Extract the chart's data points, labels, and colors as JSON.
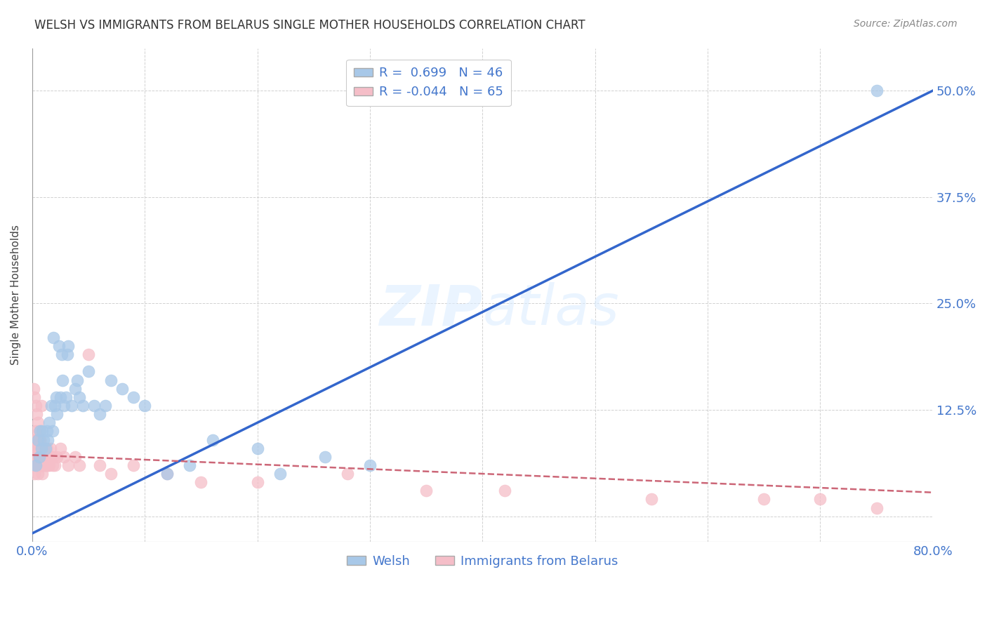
{
  "title": "WELSH VS IMMIGRANTS FROM BELARUS SINGLE MOTHER HOUSEHOLDS CORRELATION CHART",
  "source": "Source: ZipAtlas.com",
  "ylabel": "Single Mother Households",
  "xlabel_welsh": "Welsh",
  "xlabel_immigrants": "Immigrants from Belarus",
  "xmin": 0.0,
  "xmax": 0.8,
  "ymin": -0.03,
  "ymax": 0.55,
  "welsh_R": 0.699,
  "welsh_N": 46,
  "immigrants_R": -0.044,
  "immigrants_N": 65,
  "welsh_color": "#a8c8e8",
  "immigrants_color": "#f5bec8",
  "welsh_line_color": "#3366cc",
  "immigrants_line_color": "#cc6677",
  "watermark": "ZIPatlas",
  "welsh_line_x0": 0.0,
  "welsh_line_y0": -0.02,
  "welsh_line_x1": 0.8,
  "welsh_line_y1": 0.5,
  "immigrants_line_x0": 0.0,
  "immigrants_line_y0": 0.072,
  "immigrants_line_x1": 0.8,
  "immigrants_line_y1": 0.028,
  "welsh_scatter_x": [
    0.003,
    0.005,
    0.006,
    0.007,
    0.008,
    0.009,
    0.01,
    0.012,
    0.013,
    0.014,
    0.015,
    0.017,
    0.018,
    0.019,
    0.02,
    0.021,
    0.022,
    0.024,
    0.025,
    0.026,
    0.027,
    0.028,
    0.03,
    0.031,
    0.032,
    0.035,
    0.038,
    0.04,
    0.042,
    0.045,
    0.05,
    0.055,
    0.06,
    0.065,
    0.07,
    0.08,
    0.09,
    0.1,
    0.12,
    0.14,
    0.16,
    0.2,
    0.22,
    0.26,
    0.3,
    0.75
  ],
  "welsh_scatter_y": [
    0.06,
    0.09,
    0.07,
    0.1,
    0.08,
    0.1,
    0.09,
    0.08,
    0.1,
    0.09,
    0.11,
    0.13,
    0.1,
    0.21,
    0.13,
    0.14,
    0.12,
    0.2,
    0.14,
    0.19,
    0.16,
    0.13,
    0.14,
    0.19,
    0.2,
    0.13,
    0.15,
    0.16,
    0.14,
    0.13,
    0.17,
    0.13,
    0.12,
    0.13,
    0.16,
    0.15,
    0.14,
    0.13,
    0.05,
    0.06,
    0.09,
    0.08,
    0.05,
    0.07,
    0.06,
    0.5
  ],
  "immigrants_scatter_x": [
    0.001,
    0.001,
    0.001,
    0.002,
    0.002,
    0.002,
    0.003,
    0.003,
    0.003,
    0.004,
    0.004,
    0.004,
    0.005,
    0.005,
    0.005,
    0.006,
    0.006,
    0.006,
    0.007,
    0.007,
    0.007,
    0.008,
    0.008,
    0.008,
    0.009,
    0.009,
    0.009,
    0.01,
    0.01,
    0.01,
    0.011,
    0.011,
    0.012,
    0.012,
    0.013,
    0.013,
    0.014,
    0.014,
    0.015,
    0.015,
    0.016,
    0.017,
    0.018,
    0.019,
    0.02,
    0.022,
    0.025,
    0.028,
    0.032,
    0.038,
    0.042,
    0.05,
    0.06,
    0.07,
    0.09,
    0.12,
    0.15,
    0.2,
    0.28,
    0.35,
    0.42,
    0.55,
    0.65,
    0.7,
    0.75
  ],
  "immigrants_scatter_y": [
    0.06,
    0.07,
    0.08,
    0.05,
    0.07,
    0.09,
    0.06,
    0.08,
    0.1,
    0.06,
    0.07,
    0.09,
    0.05,
    0.06,
    0.08,
    0.06,
    0.07,
    0.08,
    0.06,
    0.07,
    0.09,
    0.06,
    0.07,
    0.08,
    0.05,
    0.06,
    0.07,
    0.06,
    0.07,
    0.08,
    0.06,
    0.07,
    0.06,
    0.07,
    0.06,
    0.08,
    0.06,
    0.07,
    0.06,
    0.07,
    0.08,
    0.07,
    0.06,
    0.07,
    0.06,
    0.07,
    0.08,
    0.07,
    0.06,
    0.07,
    0.06,
    0.19,
    0.06,
    0.05,
    0.06,
    0.05,
    0.04,
    0.04,
    0.05,
    0.03,
    0.03,
    0.02,
    0.02,
    0.02,
    0.01
  ],
  "immigrants_scatter_x2": [
    0.001,
    0.002,
    0.003,
    0.004,
    0.005,
    0.006,
    0.007,
    0.008
  ],
  "immigrants_scatter_y2": [
    0.15,
    0.14,
    0.13,
    0.12,
    0.11,
    0.1,
    0.09,
    0.13
  ]
}
